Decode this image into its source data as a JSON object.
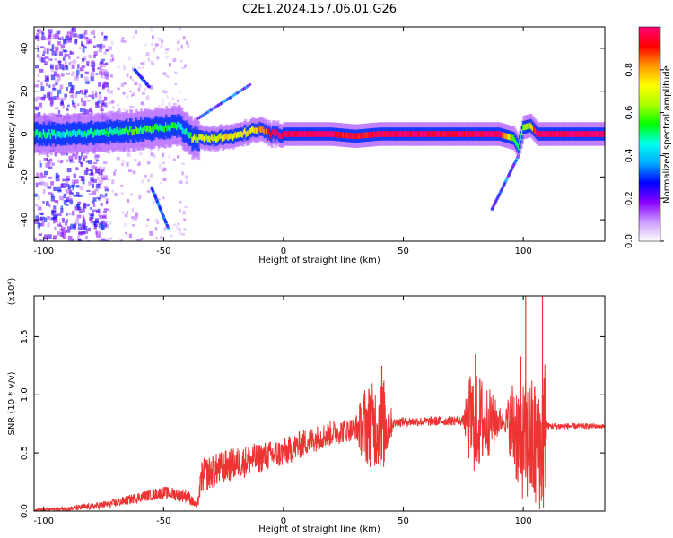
{
  "figure": {
    "title": "C2E1.2024.157.06.01.G26"
  },
  "colorbar": {
    "label": "Normalized spectral amplitude",
    "ticks": [
      "0.0",
      "0.2",
      "0.4",
      "0.6",
      "0.8"
    ],
    "range": [
      0,
      1
    ],
    "colormap": [
      "#ffffff",
      "#cc99ff",
      "#8800ff",
      "#0000ff",
      "#00aaff",
      "#00ffee",
      "#00ff00",
      "#aaff00",
      "#ffff00",
      "#ff9900",
      "#ff0000",
      "#ff0077"
    ]
  },
  "chart_data": [
    {
      "type": "heatmap",
      "xlabel": "Height of straight line (km)",
      "ylabel": "Frequency (Hz)",
      "xlim": [
        -104,
        134
      ],
      "ylim": [
        -50,
        50
      ],
      "xticks": [
        "-100",
        "-50",
        "0",
        "50",
        "100"
      ],
      "yticks": [
        "-40",
        "-20",
        "0",
        "20",
        "40"
      ],
      "ridge": {
        "x": [
          -104,
          -90,
          -80,
          -70,
          -60,
          -50,
          -44,
          -40,
          -38,
          -30,
          -20,
          -15,
          -10,
          -5,
          0,
          20,
          30,
          40,
          50,
          70,
          90,
          96,
          98,
          100,
          103,
          106,
          134
        ],
        "freq": [
          0,
          0,
          0.5,
          1,
          2,
          3,
          4,
          1,
          -2,
          -2,
          -1,
          1,
          2,
          0,
          0,
          0,
          -1,
          0,
          0,
          0,
          0,
          -2,
          -6,
          3,
          4,
          0,
          0
        ],
        "amplitude": [
          0.45,
          0.45,
          0.5,
          0.5,
          0.55,
          0.55,
          0.5,
          0.4,
          0.65,
          0.7,
          0.75,
          0.7,
          0.8,
          0.9,
          1.0,
          1.0,
          0.9,
          0.95,
          1.0,
          0.95,
          1.0,
          0.6,
          0.5,
          0.6,
          0.7,
          1.0,
          1.0
        ]
      },
      "features": [
        {
          "x": [
            -36,
            -14
          ],
          "freq": [
            7,
            23
          ]
        },
        {
          "x": [
            98,
            87
          ],
          "freq": [
            -10,
            -35
          ]
        },
        {
          "x": [
            -62,
            -56
          ],
          "freq": [
            30,
            22
          ]
        },
        {
          "x": [
            -55,
            -48
          ],
          "freq": [
            -25,
            -44
          ]
        }
      ]
    },
    {
      "type": "line",
      "xlabel": "Height of straight line (km)",
      "ylabel": "SNR (10 * v/v)",
      "yunit_label": "(x10⁴)",
      "xlim": [
        -104,
        134
      ],
      "ylim": [
        0,
        1.85
      ],
      "xticks": [
        "-100",
        "-50",
        "0",
        "50",
        "100"
      ],
      "yticks": [
        "0.0",
        "0.5",
        "1.0",
        "1.5"
      ],
      "grid": false,
      "color": "#ee3333",
      "envelope": {
        "x": [
          -104,
          -90,
          -80,
          -70,
          -60,
          -50,
          -40,
          -36,
          -34,
          -25,
          -10,
          0,
          10,
          20,
          30,
          34,
          40,
          50,
          60,
          75,
          80,
          90,
          95,
          100,
          105,
          108,
          110,
          120,
          134
        ],
        "y": [
          0.01,
          0.02,
          0.04,
          0.07,
          0.12,
          0.16,
          0.13,
          0.04,
          0.3,
          0.38,
          0.46,
          0.5,
          0.6,
          0.67,
          0.71,
          0.74,
          0.74,
          0.77,
          0.77,
          0.78,
          0.76,
          0.78,
          0.76,
          0.6,
          0.55,
          0.6,
          0.73,
          0.73,
          0.73
        ]
      },
      "fluctuation": {
        "x": [
          -104,
          -40,
          -36,
          -34,
          30,
          34,
          42,
          46,
          75,
          78,
          83,
          92,
          96,
          109,
          110,
          134
        ],
        "amplitude": [
          0.01,
          0.06,
          0.03,
          0.15,
          0.1,
          0.35,
          0.4,
          0.04,
          0.04,
          0.45,
          0.4,
          0.05,
          0.45,
          0.7,
          0.03,
          0.02
        ]
      },
      "peaks": [
        {
          "x": 36,
          "y": 1.0
        },
        {
          "x": 41,
          "y": 1.25
        },
        {
          "x": 80,
          "y": 1.35
        },
        {
          "x": 99,
          "y": 1.33
        },
        {
          "x": 101,
          "y": 1.9
        },
        {
          "x": 108,
          "y": 1.9
        }
      ]
    }
  ]
}
